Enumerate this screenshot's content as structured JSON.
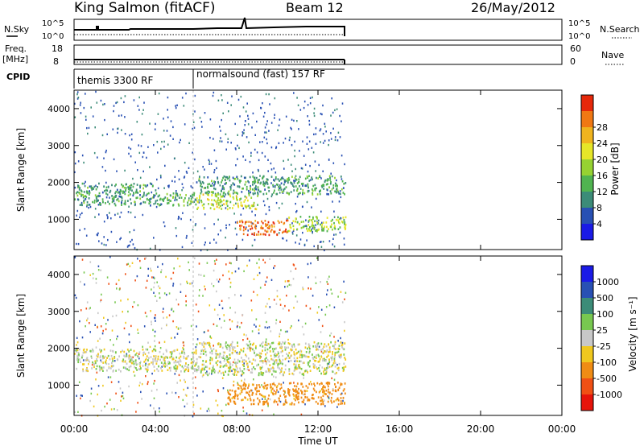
{
  "header": {
    "title": "King Salmon (fitACF)",
    "beam": "Beam 12",
    "date": "26/May/2012"
  },
  "panels": {
    "nsky": {
      "left_label": "N.Sky",
      "left_ticks": [
        "10^5",
        "10^0"
      ],
      "right_label": "N.Search",
      "right_ticks": [
        "10^5",
        "10^0"
      ]
    },
    "freq": {
      "left_label_1": "Freq.",
      "left_label_2": "[MHz]",
      "left_ticks": [
        "18",
        "8"
      ],
      "right_label": "Nave",
      "right_ticks": [
        "60",
        "0"
      ]
    },
    "cpid": {
      "label": "CPID",
      "modes": [
        "themis 3300 RF",
        "normalsound (fast) 157 RF"
      ]
    }
  },
  "axes": {
    "ylabel": "Slant Range [km]",
    "xlabel": "Time UT",
    "x_ticks": [
      "00:00",
      "04:00",
      "08:00",
      "12:00",
      "16:00",
      "20:00",
      "00:00"
    ],
    "y_ticks": [
      "1000",
      "2000",
      "3000",
      "4000"
    ]
  },
  "colorbars": {
    "power": {
      "label": "Power [dB]",
      "ticks": [
        "4",
        "8",
        "12",
        "16",
        "20",
        "24",
        "28"
      ],
      "colors": [
        "#1a1ae6",
        "#2850b4",
        "#3c8c78",
        "#50b450",
        "#96d232",
        "#e6e628",
        "#f0b41e",
        "#f07814",
        "#e6280a"
      ]
    },
    "velocity": {
      "label": "Velocity [m s⁻¹]",
      "ticks": [
        "1000",
        "500",
        "100",
        "25",
        "-25",
        "-100",
        "-500",
        "-1000"
      ],
      "colors": [
        "#1a1ae6",
        "#2850b4",
        "#3c8c78",
        "#78c850",
        "#c8c8c8",
        "#f0c81e",
        "#f08c14",
        "#f05014",
        "#e6140a"
      ]
    }
  },
  "chart_data": [
    {
      "type": "heatmap",
      "title": "King Salmon (fitACF)",
      "subtitle": "Beam 12",
      "xlabel": "Time UT",
      "ylabel": "Slant Range [km]",
      "xlim": [
        "00:00",
        "24:00"
      ],
      "ylim": [
        180,
        4500
      ],
      "colorbar": "Power [dB]",
      "data_end_time": "13:20",
      "regions": [
        {
          "time": [
            "00:00",
            "04:00"
          ],
          "range_km": [
            1400,
            2000
          ],
          "power_db": 10
        },
        {
          "time": [
            "04:00",
            "06:00"
          ],
          "range_km": [
            1400,
            1750
          ],
          "power_db": 12
        },
        {
          "time": [
            "06:00",
            "13:20"
          ],
          "range_km": [
            1700,
            2200
          ],
          "power_db": 10
        },
        {
          "time": [
            "06:00",
            "09:00"
          ],
          "range_km": [
            1300,
            1700
          ],
          "power_db": 18
        },
        {
          "time": [
            "08:00",
            "10:30"
          ],
          "range_km": [
            600,
            1000
          ],
          "power_db": 28
        },
        {
          "time": [
            "10:30",
            "13:20"
          ],
          "range_km": [
            700,
            1100
          ],
          "power_db": 16
        }
      ]
    },
    {
      "type": "heatmap",
      "xlabel": "Time UT",
      "ylabel": "Slant Range [km]",
      "xlim": [
        "00:00",
        "24:00"
      ],
      "ylim": [
        180,
        4500
      ],
      "colorbar": "Velocity [m s⁻¹]",
      "data_end_time": "13:20",
      "regions": [
        {
          "time": [
            "00:00",
            "06:00"
          ],
          "range_km": [
            1400,
            2000
          ],
          "velocity_ms": 0
        },
        {
          "time": [
            "06:00",
            "13:20"
          ],
          "range_km": [
            1300,
            2200
          ],
          "velocity_ms": 0
        },
        {
          "time": [
            "07:30",
            "13:20"
          ],
          "range_km": [
            500,
            1100
          ],
          "velocity_ms": -150
        }
      ]
    }
  ]
}
